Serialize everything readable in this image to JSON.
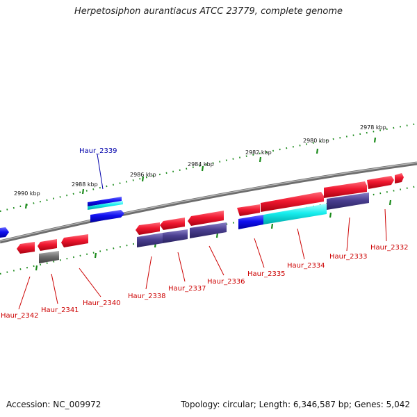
{
  "title": "Herpetosiphon aurantiacus ATCC 23779, complete genome",
  "footer": {
    "accession": "Accession: NC_009972",
    "summary": "Topology: circular; Length: 6,346,587 bp; Genes: 5,042"
  },
  "colors": {
    "backbone": "#808080",
    "forward_cds": "#e0102a",
    "reverse_cds": "#e0102a",
    "blue_feature": "#0a0aee",
    "cyan_feature": "#11e6e6",
    "purple_feature": "#4a3f8c",
    "grey_feature": "#6e6e6e",
    "tick": "#1a8a1a",
    "label_red": "#cc0000",
    "label_blue": "#0000aa"
  },
  "kbp_labels": [
    "2990 kbp",
    "2988 kbp",
    "2986 kbp",
    "2984 kbp",
    "2982 kbp",
    "2980 kbp",
    "2978 kbp"
  ],
  "gene_labels": [
    {
      "text": "Haur_2339",
      "color": "blue"
    },
    {
      "text": "Haur_2342",
      "color": "red"
    },
    {
      "text": "Haur_2341",
      "color": "red"
    },
    {
      "text": "Haur_2340",
      "color": "red"
    },
    {
      "text": "Haur_2338",
      "color": "red"
    },
    {
      "text": "Haur_2337",
      "color": "red"
    },
    {
      "text": "Haur_2336",
      "color": "red"
    },
    {
      "text": "Haur_2335",
      "color": "red"
    },
    {
      "text": "Haur_2334",
      "color": "red"
    },
    {
      "text": "Haur_2333",
      "color": "red"
    },
    {
      "text": "Haur_2332",
      "color": "red"
    }
  ]
}
